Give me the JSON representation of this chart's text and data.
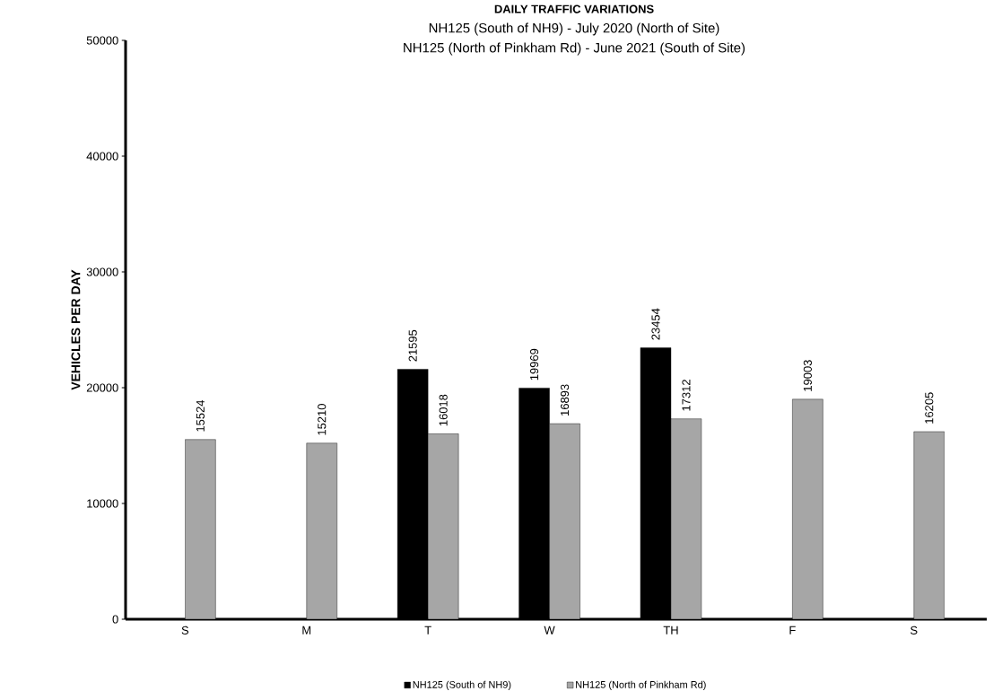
{
  "chart_data": {
    "type": "bar",
    "title": "DAILY TRAFFIC VARIATIONS",
    "subtitle": "NH125 (South of NH9) - July 2020 (North of Site)",
    "annotations": [
      "NH125 (North of Pinkham Rd) - June 2021 (South of Site)"
    ],
    "ylabel": "VEHICLES  PER  DAY",
    "categories": [
      "S",
      "M",
      "T",
      "W",
      "TH",
      "F",
      "S"
    ],
    "series": [
      {
        "name": "NH125 (South of NH9)",
        "color": "#000000",
        "values": [
          null,
          null,
          21595,
          19969,
          23454,
          null,
          null
        ]
      },
      {
        "name": "NH125 (North of Pinkham Rd)",
        "color": "#a6a6a6",
        "values": [
          15524,
          15210,
          16018,
          16893,
          17312,
          19003,
          16205
        ]
      }
    ],
    "ylim": [
      0,
      50000
    ],
    "yticks": [
      0,
      10000,
      20000,
      30000,
      40000,
      50000
    ],
    "data_labels": true,
    "grid": false,
    "legend": "bottom"
  }
}
